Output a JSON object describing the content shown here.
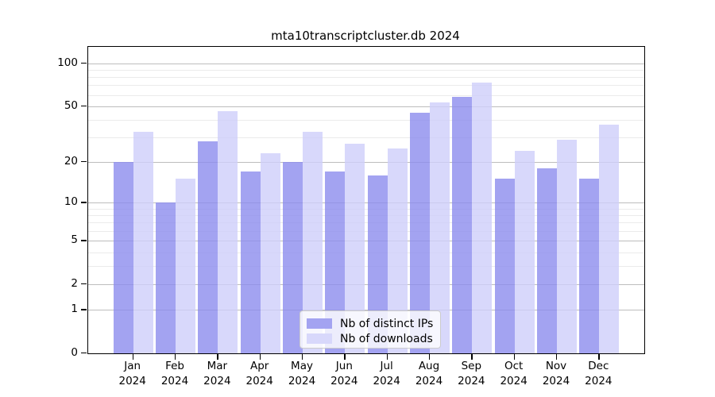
{
  "title": "mta10transcriptcluster.db 2024",
  "legend": {
    "items": [
      {
        "label": "Nb of distinct IPs",
        "color": "#a3a3f1"
      },
      {
        "label": "Nb of downloads",
        "color": "#d8d8fb"
      }
    ]
  },
  "chart_data": {
    "type": "bar",
    "title": "mta10transcriptcluster.db 2024",
    "scale": "log10(1+x)",
    "categories": [
      "Jan 2024",
      "Feb 2024",
      "Mar 2024",
      "Apr 2024",
      "May 2024",
      "Jun 2024",
      "Jul 2024",
      "Aug 2024",
      "Sep 2024",
      "Oct 2024",
      "Nov 2024",
      "Dec 2024"
    ],
    "series": [
      {
        "name": "Nb of distinct IPs",
        "color": "#a3a3f1",
        "values": [
          20,
          10,
          28,
          17,
          20,
          17,
          16,
          45,
          58,
          15,
          18,
          15
        ]
      },
      {
        "name": "Nb of downloads",
        "color": "#d8d8fb",
        "values": [
          33,
          15,
          46,
          23,
          33,
          27,
          25,
          53,
          73,
          24,
          29,
          37
        ]
      }
    ],
    "xlabel": "",
    "ylabel": "",
    "yticks": [
      0,
      1,
      2,
      5,
      10,
      20,
      50,
      100
    ],
    "minor_gridlines": [
      3,
      4,
      6,
      7,
      8,
      9,
      30,
      40,
      60,
      70,
      80,
      90
    ],
    "ylim": [
      0,
      130
    ],
    "grid": true,
    "legend_position": "lower center inside"
  }
}
